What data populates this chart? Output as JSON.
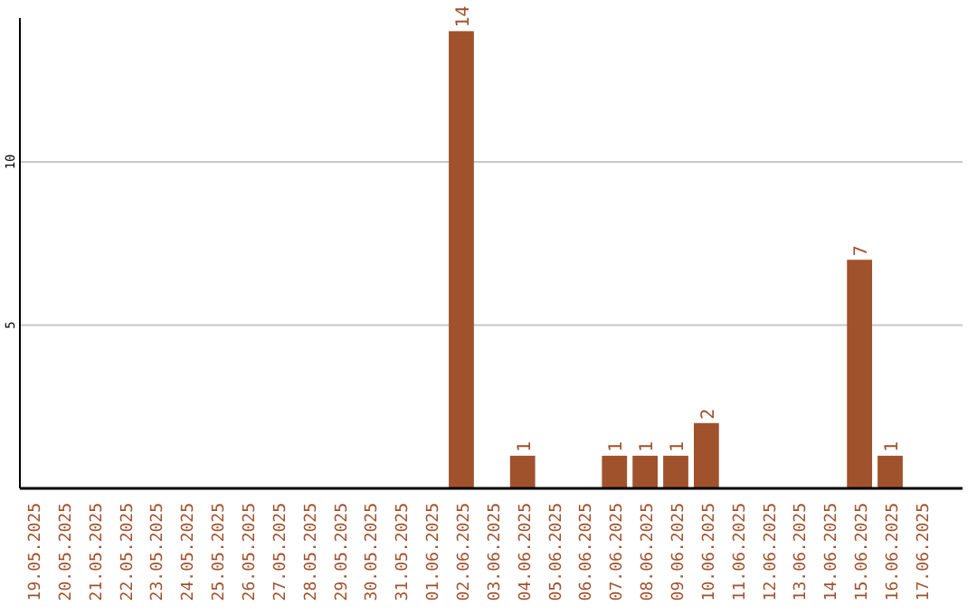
{
  "chart_data": {
    "type": "bar",
    "categories": [
      "19.05.2025",
      "20.05.2025",
      "21.05.2025",
      "22.05.2025",
      "23.05.2025",
      "24.05.2025",
      "25.05.2025",
      "26.05.2025",
      "27.05.2025",
      "28.05.2025",
      "29.05.2025",
      "30.05.2025",
      "31.05.2025",
      "01.06.2025",
      "02.06.2025",
      "03.06.2025",
      "04.06.2025",
      "05.06.2025",
      "06.06.2025",
      "07.06.2025",
      "08.06.2025",
      "09.06.2025",
      "10.06.2025",
      "11.06.2025",
      "12.06.2025",
      "13.06.2025",
      "14.06.2025",
      "15.06.2025",
      "16.06.2025",
      "17.06.2025"
    ],
    "values": [
      0,
      0,
      0,
      0,
      0,
      0,
      0,
      0,
      0,
      0,
      0,
      0,
      0,
      0,
      14,
      0,
      1,
      0,
      0,
      1,
      1,
      1,
      2,
      0,
      0,
      0,
      0,
      7,
      1,
      0
    ],
    "value_labels": [
      null,
      null,
      null,
      null,
      null,
      null,
      null,
      null,
      null,
      null,
      null,
      null,
      null,
      null,
      "14",
      null,
      "1",
      null,
      null,
      "1",
      "1",
      "1",
      "2",
      null,
      null,
      null,
      null,
      "7",
      "1",
      null
    ],
    "color": "#a0522d",
    "ylim": [
      0,
      14.4
    ],
    "yticks": [
      5,
      10
    ],
    "grid": "y"
  }
}
